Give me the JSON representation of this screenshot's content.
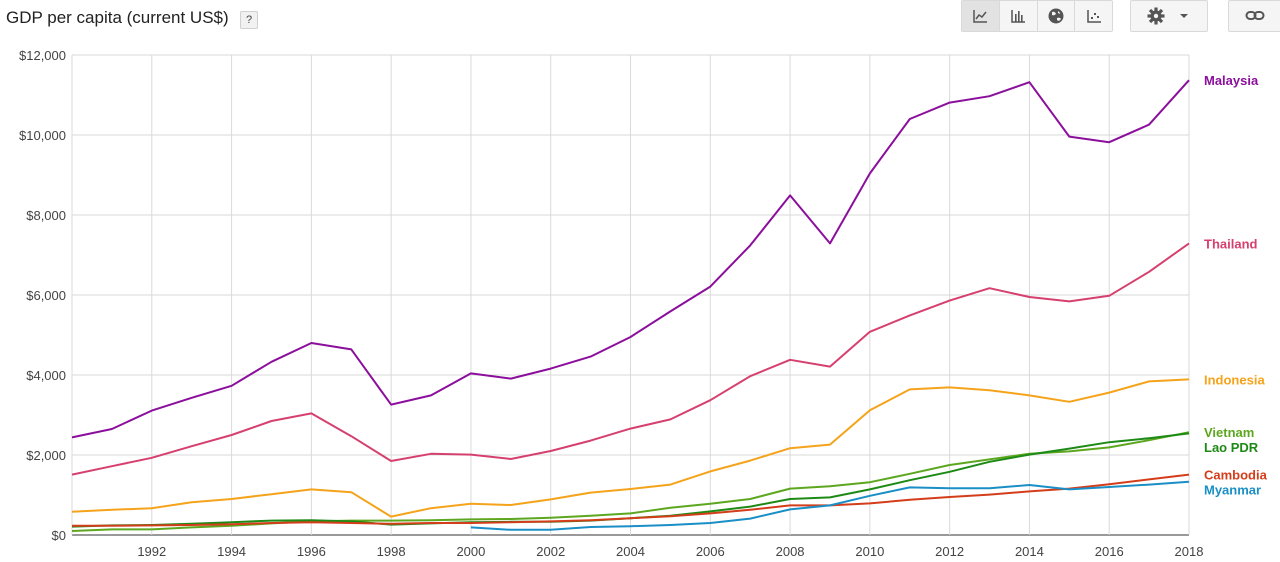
{
  "header": {
    "title": "GDP per capita (current US$)",
    "help_label": "?"
  },
  "toolbar": {
    "view_buttons": [
      {
        "icon": "line-chart-icon",
        "active": true
      },
      {
        "icon": "bar-chart-icon",
        "active": false
      },
      {
        "icon": "globe-map-icon",
        "active": false
      },
      {
        "icon": "scatter-plot-icon",
        "active": false
      }
    ],
    "settings_icon": "gear-icon",
    "dropdown_icon": "caret-down-icon",
    "share_icon": "link-icon"
  },
  "chart_data": {
    "type": "line",
    "title": "GDP per capita (current US$)",
    "ylim": [
      0,
      12000
    ],
    "yticks": [
      0,
      2000,
      4000,
      6000,
      8000,
      10000,
      12000
    ],
    "ytick_labels": [
      "$0",
      "$2,000",
      "$4,000",
      "$6,000",
      "$8,000",
      "$10,000",
      "$12,000"
    ],
    "xlim": [
      1990,
      2018
    ],
    "xticks": [
      1992,
      1994,
      1996,
      1998,
      2000,
      2002,
      2004,
      2006,
      2008,
      2010,
      2012,
      2014,
      2016,
      2018
    ],
    "grid": true,
    "legend": "right, labels at line ends",
    "series": [
      {
        "name": "Malaysia",
        "color": "#8b0f9c",
        "start": 1990,
        "values": [
          2440,
          2650,
          3110,
          3430,
          3730,
          4330,
          4800,
          4640,
          3260,
          3490,
          4040,
          3910,
          4160,
          4460,
          4950,
          5590,
          6210,
          7240,
          8490,
          7290,
          9040,
          10400,
          10810,
          10970,
          11320,
          9960,
          9820,
          10260,
          11370
        ]
      },
      {
        "name": "Thailand",
        "color": "#d6406f",
        "start": 1990,
        "values": [
          1510,
          1720,
          1930,
          2220,
          2500,
          2850,
          3040,
          2470,
          1850,
          2030,
          2010,
          1900,
          2100,
          2360,
          2660,
          2890,
          3370,
          3970,
          4380,
          4210,
          5080,
          5490,
          5860,
          6170,
          5950,
          5840,
          5980,
          6580,
          7290
        ]
      },
      {
        "name": "Indonesia",
        "color": "#f5a31a",
        "start": 1990,
        "values": [
          580,
          630,
          670,
          820,
          900,
          1020,
          1140,
          1070,
          460,
          670,
          780,
          750,
          890,
          1060,
          1150,
          1260,
          1590,
          1860,
          2170,
          2260,
          3120,
          3640,
          3690,
          3620,
          3490,
          3330,
          3560,
          3840,
          3890
        ]
      },
      {
        "name": "Vietnam",
        "color": "#5ca71f",
        "start": 1990,
        "values": [
          100,
          140,
          140,
          190,
          230,
          290,
          340,
          360,
          360,
          370,
          390,
          400,
          430,
          480,
          540,
          680,
          780,
          900,
          1160,
          1220,
          1320,
          1530,
          1750,
          1890,
          2030,
          2090,
          2190,
          2370,
          2570
        ]
      },
      {
        "name": "Lao PDR",
        "color": "#1e8a16",
        "start": 1990,
        "values": [
          210,
          240,
          250,
          280,
          320,
          360,
          370,
          340,
          260,
          290,
          320,
          330,
          330,
          360,
          420,
          480,
          590,
          710,
          900,
          940,
          1140,
          1370,
          1580,
          1830,
          2010,
          2160,
          2320,
          2420,
          2540
        ]
      },
      {
        "name": "Cambodia",
        "color": "#d43d1a",
        "start": 1990,
        "values": [
          230,
          230,
          240,
          250,
          270,
          300,
          320,
          300,
          280,
          300,
          300,
          320,
          340,
          370,
          420,
          470,
          540,
          630,
          740,
          740,
          790,
          880,
          950,
          1010,
          1090,
          1160,
          1270,
          1390,
          1510
        ]
      },
      {
        "name": "Myanmar",
        "color": "#1a8fc6",
        "start": 2000,
        "values": [
          190,
          130,
          130,
          200,
          220,
          250,
          300,
          410,
          640,
          740,
          980,
          1190,
          1170,
          1170,
          1250,
          1140,
          1200,
          1260,
          1330
        ]
      }
    ]
  }
}
